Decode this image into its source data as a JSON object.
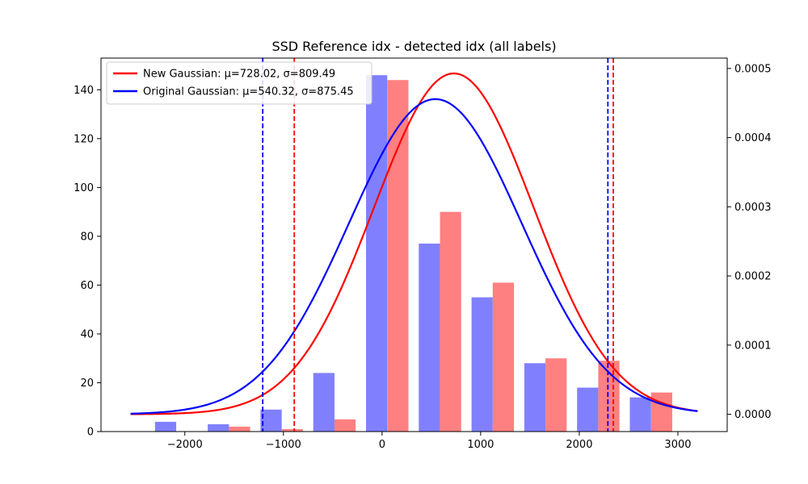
{
  "chart_data": {
    "type": "bar",
    "title": "SSD Reference idx - detected idx (all labels)",
    "xlabel": "",
    "ylabel": "",
    "xlim": [
      -2850,
      3500
    ],
    "ylim": [
      0,
      153
    ],
    "y2lim": [
      -2.5e-05,
      0.000515
    ],
    "x_ticks": [
      -2000,
      -1000,
      0,
      1000,
      2000,
      3000
    ],
    "x_tick_labels": [
      "−2000",
      "−1000",
      "0",
      "1000",
      "2000",
      "3000"
    ],
    "y_ticks": [
      0,
      20,
      40,
      60,
      80,
      100,
      120,
      140
    ],
    "y_tick_labels": [
      "0",
      "20",
      "40",
      "60",
      "80",
      "100",
      "120",
      "140"
    ],
    "y2_ticks": [
      0,
      0.0001,
      0.0002,
      0.0003,
      0.0004,
      0.0005
    ],
    "y2_tick_labels": [
      "0.0000",
      "0.0001",
      "0.0002",
      "0.0003",
      "0.0004",
      "0.0005"
    ],
    "bar_width": 215,
    "histograms": [
      {
        "color": "#8080ff",
        "x": [
          -2195,
          -1660,
          -1125,
          -590,
          -55,
          480,
          1015,
          1550,
          2085,
          2620
        ],
        "values": [
          4,
          3,
          9,
          24,
          146,
          77,
          55,
          28,
          18,
          14
        ]
      },
      {
        "color": "#ff8080",
        "x": [
          -1980,
          -1445,
          -910,
          -375,
          160,
          695,
          1230,
          1765,
          2300,
          2835
        ],
        "values": [
          0,
          2,
          1,
          5,
          144,
          90,
          61,
          30,
          29,
          16
        ]
      }
    ],
    "series": [
      {
        "name": "New Gaussian: μ=728.02, σ=809.49",
        "mu": 728.02,
        "sigma": 809.49,
        "color": "#ff0000",
        "x_range": [
          -2550,
          3200
        ]
      },
      {
        "name": "Original Gaussian: μ=540.32, σ=875.45",
        "mu": 540.32,
        "sigma": 875.45,
        "color": "#0000ff",
        "x_range": [
          -2550,
          3200
        ]
      }
    ],
    "vlines": [
      {
        "x": -1210,
        "color": "#0000ff"
      },
      {
        "x": -890,
        "color": "#ff0000"
      },
      {
        "x": 2290,
        "color": "#0000ff"
      },
      {
        "x": 2345,
        "color": "#ff0000"
      }
    ],
    "legend": "upper-left",
    "grid": false
  }
}
